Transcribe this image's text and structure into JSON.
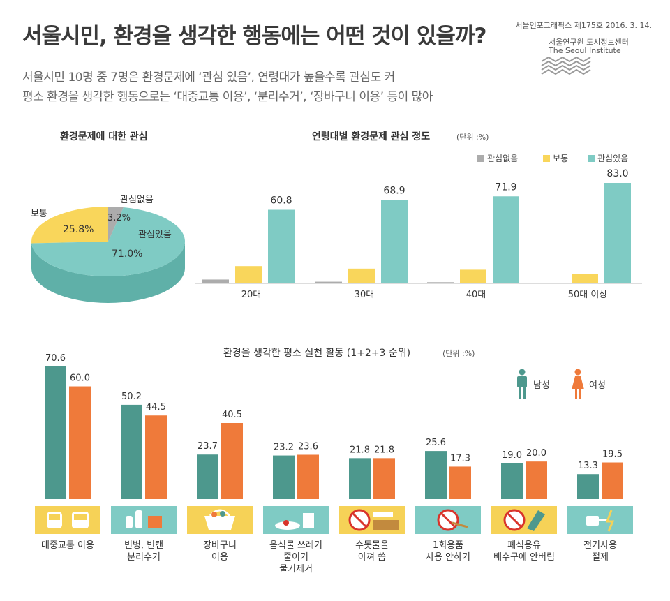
{
  "header": {
    "title": "서울시민, 환경을 생각한 행동에는 어떤 것이 있을까?",
    "subtitle_line1": "서울시민 10명 중 7명은 환경문제에 ‘관심 있음’, 연령대가 높을수록 관심도 커",
    "subtitle_line2": "평소 환경을 생각한 행동으로는 ‘대중교통 이용’, ‘분리수거’, ‘장바구니 이용’ 등이 많아",
    "pub_info": "서울인포그래픽스 제175호 2016. 3. 14.",
    "org_ko": "서울연구원 도시정보센터",
    "org_en": "The Seoul Institute"
  },
  "colors": {
    "gray": "#acacac",
    "yellow": "#f9d65b",
    "teal": "#7fcbc4",
    "male": "#4d988d",
    "female": "#ef7a3a",
    "icon_yellow": "#f6d257",
    "icon_teal": "#7fcbc4"
  },
  "chart_data": [
    {
      "type": "pie",
      "title": "환경문제에 대한 관심",
      "labels": [
        "관심없음",
        "보통",
        "관심있음"
      ],
      "values": [
        3.2,
        25.8,
        71.0
      ],
      "value_labels": [
        "3.2%",
        "25.8%",
        "71.0%"
      ]
    },
    {
      "type": "bar",
      "title": "연령대별 환경문제 관심 정도",
      "unit": "(단위 :%)",
      "categories": [
        "20대",
        "30대",
        "40대",
        "50대 이상"
      ],
      "series": [
        {
          "name": "관심없음",
          "values": [
            3.2,
            1.4,
            1.0,
            0.0
          ]
        },
        {
          "name": "보통",
          "values": [
            14.3,
            12.2,
            11.3,
            7.7
          ]
        },
        {
          "name": "관심있음",
          "values": [
            60.8,
            68.9,
            71.9,
            83.0
          ]
        }
      ],
      "labeled_series": "관심있음",
      "ylim": [
        0,
        83
      ]
    },
    {
      "type": "bar",
      "title": "환경을 생각한 평소 실천 활동 (1+2+3 순위)",
      "unit": "(단위 :%)",
      "categories": [
        [
          "대중교통 이용"
        ],
        [
          "빈병, 빈캔",
          "분리수거"
        ],
        [
          "장바구니",
          "이용"
        ],
        [
          "음식물 쓰레기",
          "줄이기",
          "물기제거"
        ],
        [
          "수돗물을",
          "아껴 씀"
        ],
        [
          "1회용품",
          "사용 안하기"
        ],
        [
          "폐식용유",
          "배수구에 안버림"
        ],
        [
          "전기사용",
          "절제"
        ]
      ],
      "series": [
        {
          "name": "남성",
          "values": [
            70.6,
            50.2,
            23.7,
            23.2,
            21.8,
            25.6,
            19.0,
            13.3
          ]
        },
        {
          "name": "여성",
          "values": [
            60.0,
            44.5,
            40.5,
            23.6,
            21.8,
            17.3,
            20.0,
            19.5
          ]
        }
      ],
      "ylim": [
        0,
        70.6
      ]
    }
  ],
  "activity_icons": [
    "bus-train-icon",
    "bottles-can-icon",
    "basket-icon",
    "food-waste-icon",
    "tap-water-icon",
    "disposable-icon",
    "cooking-oil-icon",
    "plug-icon"
  ]
}
